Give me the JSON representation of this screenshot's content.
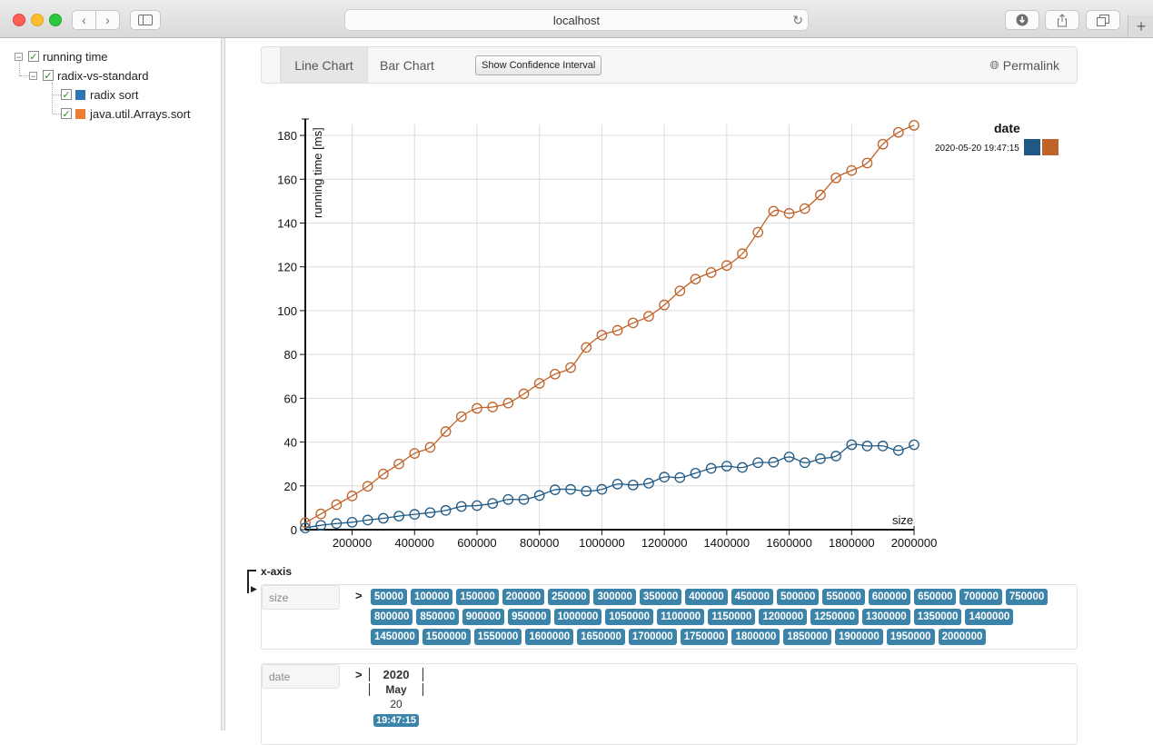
{
  "browser": {
    "address": "localhost",
    "new_tab_label": "+"
  },
  "tree": {
    "root": {
      "label": "running time",
      "checked": true
    },
    "group": {
      "label": "radix-vs-standard",
      "checked": true
    },
    "items": [
      {
        "label": "radix sort",
        "color": "#2e75b6"
      },
      {
        "label": "java.util.Arrays.sort",
        "color": "#ed7d31"
      }
    ]
  },
  "toolbar": {
    "tabs": [
      {
        "label": "Line Chart",
        "active": true
      },
      {
        "label": "Bar Chart",
        "active": false
      }
    ],
    "ci_button": "Show Confidence Interval",
    "permalink": "Permalink"
  },
  "chart_data": {
    "type": "line",
    "xlabel": "size",
    "ylabel": "running time [ms]",
    "xlim": [
      50000,
      2000000
    ],
    "ylim": [
      0,
      185
    ],
    "x_ticks": [
      200000,
      400000,
      600000,
      800000,
      1000000,
      1200000,
      1400000,
      1600000,
      1800000,
      2000000
    ],
    "y_ticks": [
      0,
      20,
      40,
      60,
      80,
      100,
      120,
      140,
      160,
      180
    ],
    "grid": true,
    "legend": {
      "title": "date",
      "entry": "2020-05-20 19:47:15",
      "placement": "top-right"
    },
    "x": [
      50000,
      100000,
      150000,
      200000,
      250000,
      300000,
      350000,
      400000,
      450000,
      500000,
      550000,
      600000,
      650000,
      700000,
      750000,
      800000,
      850000,
      900000,
      950000,
      1000000,
      1050000,
      1100000,
      1150000,
      1200000,
      1250000,
      1300000,
      1350000,
      1400000,
      1450000,
      1500000,
      1550000,
      1600000,
      1650000,
      1700000,
      1750000,
      1800000,
      1850000,
      1900000,
      1950000,
      2000000
    ],
    "series": [
      {
        "name": "radix sort",
        "color": "#1f5a85",
        "values": [
          0.8,
          2,
          2.8,
          3.4,
          4.4,
          5.2,
          6.2,
          7,
          7.8,
          8.8,
          10.6,
          11,
          12,
          13.8,
          13.8,
          15.6,
          18.2,
          18.4,
          17.6,
          18.4,
          20.8,
          20.4,
          21.2,
          24,
          23.8,
          25.8,
          28,
          29,
          28.4,
          30.6,
          30.8,
          33.2,
          30.6,
          32.4,
          33.6,
          38.8,
          38.2,
          38.2,
          36.2,
          38.8
        ]
      },
      {
        "name": "java.util.Arrays.sort",
        "color": "#c0632a",
        "values": [
          3.2,
          7.2,
          11.4,
          15.4,
          19.8,
          25.4,
          30,
          34.8,
          37.6,
          44.8,
          51.6,
          55.4,
          56,
          57.8,
          62,
          66.8,
          71,
          74,
          83.2,
          88.8,
          91,
          94.4,
          97.4,
          102.6,
          109,
          114.4,
          117.4,
          120.6,
          126,
          135.8,
          145.4,
          144.4,
          146.6,
          152.8,
          160.6,
          164,
          167.4,
          176,
          181.4,
          184.6
        ]
      }
    ]
  },
  "xaxis": {
    "label": "x-axis",
    "size": {
      "label": "size",
      "values": [
        "50000",
        "100000",
        "150000",
        "200000",
        "250000",
        "300000",
        "350000",
        "400000",
        "450000",
        "500000",
        "550000",
        "600000",
        "650000",
        "700000",
        "750000",
        "800000",
        "850000",
        "900000",
        "950000",
        "1000000",
        "1050000",
        "1100000",
        "1150000",
        "1200000",
        "1250000",
        "1300000",
        "1350000",
        "1400000",
        "1450000",
        "1500000",
        "1550000",
        "1600000",
        "1650000",
        "1700000",
        "1750000",
        "1800000",
        "1850000",
        "1900000",
        "1950000",
        "2000000"
      ]
    },
    "date": {
      "label": "date",
      "year": "2020",
      "month": "May",
      "day": "20",
      "time": "19:47:15"
    }
  }
}
